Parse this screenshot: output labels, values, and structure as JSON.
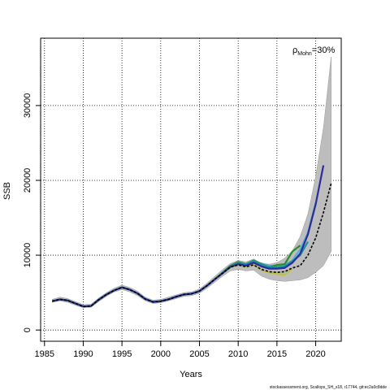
{
  "chart_data": {
    "type": "line",
    "title": "",
    "xlabel": "Years",
    "ylabel": "SSB",
    "xlim": [
      1984.5,
      2023.3
    ],
    "ylim": [
      -1500,
      39000
    ],
    "xticks": [
      1985,
      1990,
      1995,
      2000,
      2005,
      2010,
      2015,
      2020
    ],
    "yticks": [
      0,
      10000,
      20000,
      30000
    ],
    "grid": true,
    "annotation": {
      "rho": "ρ",
      "sub": "Mohn",
      "value": "=30%"
    },
    "footnote": "stockassessment.org, Scallops_SH_s18, r17744, git:ec2a0c8dde",
    "colors": {
      "band": "#bdbdbd",
      "base": "#000000",
      "peels": [
        "#bfbf4a",
        "#55aed6",
        "#2a8c2a",
        "#1f8fa0",
        "#2b2b9a"
      ]
    },
    "confidence_band": {
      "x": [
        1986,
        1987,
        1988,
        1989,
        1990,
        1991,
        1992,
        1993,
        1994,
        1995,
        1996,
        1997,
        1998,
        1999,
        2000,
        2001,
        2002,
        2003,
        2004,
        2005,
        2006,
        2007,
        2008,
        2009,
        2010,
        2011,
        2012,
        2013,
        2014,
        2015,
        2016,
        2017,
        2018,
        2019,
        2020,
        2021,
        2022
      ],
      "lower": [
        3700,
        3900,
        3700,
        3300,
        3000,
        3050,
        3800,
        4500,
        5100,
        5400,
        5100,
        4600,
        3900,
        3550,
        3650,
        3900,
        4200,
        4500,
        4600,
        4900,
        5600,
        6400,
        7200,
        7900,
        8100,
        7900,
        8000,
        7200,
        6800,
        6600,
        6500,
        6600,
        6700,
        7000,
        7700,
        8600,
        10500
      ],
      "upper": [
        4100,
        4400,
        4200,
        3800,
        3400,
        3450,
        4300,
        5000,
        5600,
        6000,
        5700,
        5200,
        4400,
        4000,
        4100,
        4400,
        4700,
        5000,
        5100,
        5500,
        6300,
        7200,
        8100,
        8900,
        9300,
        9100,
        9500,
        8900,
        8800,
        9000,
        9600,
        10600,
        12500,
        15500,
        20500,
        27000,
        36500
      ]
    },
    "series": [
      {
        "x": [
          1986,
          1987,
          1988,
          1989,
          1990,
          1991,
          1992,
          1993,
          1994,
          1995,
          1996,
          1997,
          1998,
          1999,
          2000,
          2001,
          2002,
          2003,
          2004,
          2005,
          2006,
          2007,
          2008,
          2009,
          2010,
          2011,
          2012,
          2013,
          2014,
          2015,
          2016,
          2017,
          2018,
          2019,
          2020,
          2021,
          2022
        ],
        "values": [
          3850,
          4100,
          3950,
          3550,
          3150,
          3200,
          4050,
          4750,
          5300,
          5700,
          5400,
          4900,
          4150,
          3750,
          3850,
          4100,
          4450,
          4750,
          4850,
          5200,
          5950,
          6800,
          7600,
          8400,
          8700,
          8450,
          8700,
          8100,
          7800,
          7700,
          7800,
          8300,
          8600,
          10000,
          12300,
          15700,
          19600
        ]
      },
      {
        "x": [
          1986,
          1987,
          1988,
          1989,
          1990,
          1991,
          1992,
          1993,
          1994,
          1995,
          1996,
          1997,
          1998,
          1999,
          2000,
          2001,
          2002,
          2003,
          2004,
          2005,
          2006,
          2007,
          2008,
          2009,
          2010,
          2011,
          2012,
          2013,
          2014,
          2015,
          2016,
          2017
        ],
        "values": [
          3850,
          4100,
          3950,
          3550,
          3150,
          3200,
          4050,
          4750,
          5300,
          5700,
          5400,
          4900,
          4150,
          3750,
          3850,
          4100,
          4450,
          4750,
          4850,
          5200,
          5950,
          6800,
          7600,
          8400,
          8700,
          8450,
          8800,
          8000,
          7700,
          7500,
          7400,
          8200
        ]
      },
      {
        "x": [
          1986,
          1987,
          1988,
          1989,
          1990,
          1991,
          1992,
          1993,
          1994,
          1995,
          1996,
          1997,
          1998,
          1999,
          2000,
          2001,
          2002,
          2003,
          2004,
          2005,
          2006,
          2007,
          2008,
          2009,
          2010,
          2011,
          2012,
          2013,
          2014,
          2015,
          2016,
          2017,
          2018,
          2019,
          2020
        ],
        "values": [
          3850,
          4100,
          3950,
          3550,
          3150,
          3200,
          4050,
          4750,
          5300,
          5700,
          5400,
          4900,
          4150,
          3750,
          3850,
          4100,
          4450,
          4750,
          4850,
          5200,
          5950,
          6800,
          7600,
          8500,
          8900,
          8700,
          9200,
          8900,
          8600,
          8500,
          8700,
          9300,
          10800,
          13000,
          17000
        ]
      },
      {
        "x": [
          1986,
          1987,
          1988,
          1989,
          1990,
          1991,
          1992,
          1993,
          1994,
          1995,
          1996,
          1997,
          1998,
          1999,
          2000,
          2001,
          2002,
          2003,
          2004,
          2005,
          2006,
          2007,
          2008,
          2009,
          2010,
          2011,
          2012,
          2013,
          2014,
          2015,
          2016,
          2017,
          2018
        ],
        "values": [
          3850,
          4100,
          3950,
          3550,
          3150,
          3200,
          4050,
          4750,
          5300,
          5700,
          5400,
          4900,
          4150,
          3750,
          3850,
          4100,
          4450,
          4750,
          4850,
          5200,
          5950,
          6800,
          7700,
          8600,
          9100,
          8800,
          9300,
          8800,
          8400,
          8700,
          8800,
          10500,
          11300
        ]
      },
      {
        "x": [
          1986,
          1987,
          1988,
          1989,
          1990,
          1991,
          1992,
          1993,
          1994,
          1995,
          1996,
          1997,
          1998,
          1999,
          2000,
          2001,
          2002,
          2003,
          2004,
          2005,
          2006,
          2007,
          2008,
          2009,
          2010,
          2011,
          2012,
          2013,
          2014,
          2015,
          2016,
          2017,
          2018,
          2019
        ],
        "values": [
          3850,
          4100,
          3950,
          3550,
          3150,
          3200,
          4050,
          4750,
          5300,
          5700,
          5400,
          4900,
          4150,
          3750,
          3850,
          4100,
          4450,
          4750,
          4850,
          5200,
          5950,
          6800,
          7650,
          8500,
          9000,
          8800,
          9250,
          8700,
          8400,
          8400,
          8500,
          9200,
          10000,
          11800
        ]
      },
      {
        "x": [
          1986,
          1987,
          1988,
          1989,
          1990,
          1991,
          1992,
          1993,
          1994,
          1995,
          1996,
          1997,
          1998,
          1999,
          2000,
          2001,
          2002,
          2003,
          2004,
          2005,
          2006,
          2007,
          2008,
          2009,
          2010,
          2011,
          2012,
          2013,
          2014,
          2015,
          2016,
          2017,
          2018,
          2019,
          2020,
          2021
        ],
        "values": [
          3850,
          4100,
          3950,
          3550,
          3150,
          3200,
          4050,
          4750,
          5300,
          5700,
          5400,
          4900,
          4150,
          3750,
          3850,
          4100,
          4450,
          4750,
          4850,
          5200,
          5950,
          6800,
          7600,
          8450,
          8800,
          8600,
          9000,
          8500,
          8200,
          8200,
          8300,
          9000,
          10200,
          12800,
          16800,
          22000
        ]
      }
    ]
  }
}
